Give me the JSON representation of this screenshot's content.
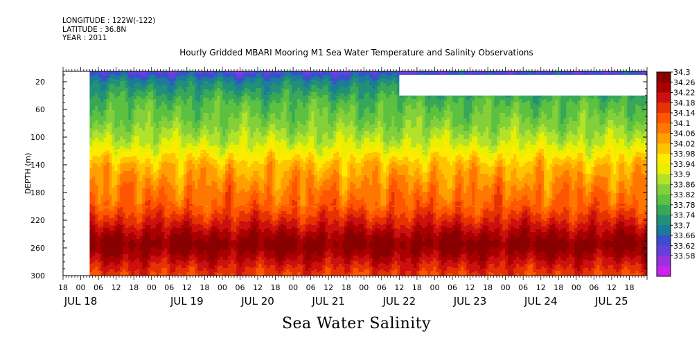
{
  "header": {
    "longitude": "LONGITUDE : 122W(-122)",
    "latitude": "LATITUDE : 36.8N",
    "year": "YEAR : 2011"
  },
  "title": "Hourly Gridded MBARI Mooring M1 Sea Water Temperature and Salinity Observations",
  "bottom_title": "Sea Water Salinity",
  "chart_data": {
    "type": "heatmap",
    "title": "Hourly Gridded MBARI Mooring M1 Sea Water Temperature and Salinity Observations",
    "xlabel": "",
    "ylabel": "DEPTH (m)",
    "y_range": [
      300,
      5
    ],
    "y_ticks": [
      20,
      60,
      100,
      140,
      180,
      220,
      260,
      300
    ],
    "y_inverted": true,
    "x_range_hours": [
      -6,
      192
    ],
    "x_origin": "JUL 18 00",
    "x_tick_labels": [
      "18",
      "00",
      "06",
      "12",
      "18",
      "00",
      "06",
      "12",
      "18",
      "00",
      "06",
      "12",
      "18",
      "00",
      "06",
      "12",
      "18",
      "00",
      "06",
      "12",
      "18",
      "00",
      "06",
      "12",
      "18",
      "00",
      "06",
      "12",
      "18",
      "00",
      "06",
      "12",
      "18"
    ],
    "date_labels": [
      "JUL 18",
      "JUL 19",
      "JUL 20",
      "JUL 21",
      "JUL 22",
      "JUL 23",
      "JUL 24",
      "JUL 25"
    ],
    "data_start": "JUL 18 ~03",
    "missing_region": {
      "x_from": "JUL 22 ~12",
      "x_to": "JUL 25 ~24",
      "depth_from": 10,
      "depth_to": 40
    },
    "colorbar": {
      "values": [
        34.3,
        34.26,
        34.22,
        34.18,
        34.14,
        34.1,
        34.06,
        34.02,
        33.98,
        33.94,
        33.9,
        33.86,
        33.82,
        33.78,
        33.74,
        33.7,
        33.66,
        33.62,
        33.58
      ],
      "colors": [
        "#880000",
        "#aa0000",
        "#cc1010",
        "#e63200",
        "#ff5500",
        "#ff7700",
        "#ff9f00",
        "#ffc400",
        "#ffea00",
        "#e8f000",
        "#b2e22a",
        "#84d03a",
        "#5cc040",
        "#38a858",
        "#229078",
        "#1c7a9a",
        "#3a4fcc",
        "#6640dd",
        "#9a30e0",
        "#cc22ee"
      ]
    },
    "depth_profile": [
      {
        "depth": 5,
        "value": 33.68
      },
      {
        "depth": 20,
        "value": 33.76
      },
      {
        "depth": 50,
        "value": 33.84
      },
      {
        "depth": 80,
        "value": 33.88
      },
      {
        "depth": 110,
        "value": 33.94
      },
      {
        "depth": 140,
        "value": 34.04
      },
      {
        "depth": 170,
        "value": 34.09
      },
      {
        "depth": 200,
        "value": 34.13
      },
      {
        "depth": 225,
        "value": 34.2
      },
      {
        "depth": 240,
        "value": 34.25
      },
      {
        "depth": 255,
        "value": 34.29
      },
      {
        "depth": 270,
        "value": 34.25
      },
      {
        "depth": 285,
        "value": 34.2
      },
      {
        "depth": 300,
        "value": 34.16
      }
    ]
  }
}
